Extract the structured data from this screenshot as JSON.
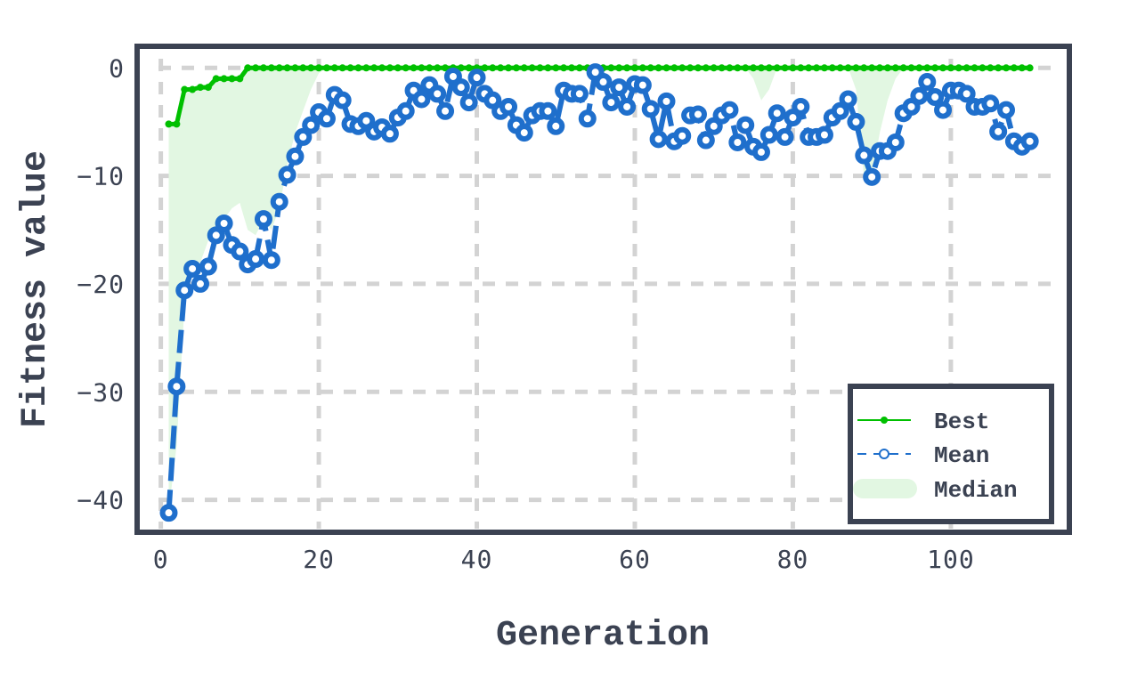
{
  "chart_data": {
    "type": "line",
    "xlabel": "Generation",
    "ylabel": "Fitness value",
    "xlim": [
      -3,
      115
    ],
    "ylim": [
      -43,
      2
    ],
    "xticks": [
      0,
      20,
      40,
      60,
      80,
      100
    ],
    "yticks": [
      0,
      -10,
      -20,
      -30,
      -40
    ],
    "xtick_labels": [
      "0",
      "20",
      "40",
      "60",
      "80",
      "100"
    ],
    "ytick_labels": [
      "0",
      "−10",
      "−20",
      "−30",
      "−40"
    ],
    "grid": true,
    "legend_position": "bottom-right",
    "x": [
      1,
      2,
      3,
      4,
      5,
      6,
      7,
      8,
      9,
      10,
      11,
      12,
      13,
      14,
      15,
      16,
      17,
      18,
      19,
      20,
      21,
      22,
      23,
      24,
      25,
      26,
      27,
      28,
      29,
      30,
      31,
      32,
      33,
      34,
      35,
      36,
      37,
      38,
      39,
      40,
      41,
      42,
      43,
      44,
      45,
      46,
      47,
      48,
      49,
      50,
      51,
      52,
      53,
      54,
      55,
      56,
      57,
      58,
      59,
      60,
      61,
      62,
      63,
      64,
      65,
      66,
      67,
      68,
      69,
      70,
      71,
      72,
      73,
      74,
      75,
      76,
      77,
      78,
      79,
      80,
      81,
      82,
      83,
      84,
      85,
      86,
      87,
      88,
      89,
      90,
      91,
      92,
      93,
      94,
      95,
      96,
      97,
      98,
      99,
      100,
      101,
      102,
      103,
      104,
      105,
      106,
      107,
      108,
      109,
      110
    ],
    "series": [
      {
        "name": "Best",
        "color": "#00c000",
        "style": "solid-line-dot-markers",
        "values": [
          -5.2,
          -5.2,
          -2,
          -2,
          -1.8,
          -1.8,
          -1,
          -1,
          -1,
          -1,
          0,
          0,
          0,
          0,
          0,
          0,
          0,
          0,
          0,
          0,
          0,
          0,
          0,
          0,
          0,
          0,
          0,
          0,
          0,
          0,
          0,
          0,
          0,
          0,
          0,
          0,
          0,
          0,
          0,
          0,
          0,
          0,
          0,
          0,
          0,
          0,
          0,
          0,
          0,
          0,
          0,
          0,
          0,
          0,
          0,
          0,
          0,
          0,
          0,
          0,
          0,
          0,
          0,
          0,
          0,
          0,
          0,
          0,
          0,
          0,
          0,
          0,
          0,
          0,
          0,
          0,
          0,
          0,
          0,
          0,
          0,
          0,
          0,
          0,
          0,
          0,
          0,
          0,
          0,
          0,
          0,
          0,
          0,
          0,
          0,
          0,
          0,
          0,
          0,
          0,
          0,
          0,
          0,
          0,
          0,
          0,
          0,
          0,
          0,
          0
        ]
      },
      {
        "name": "Mean",
        "color": "#1f6fcc",
        "style": "dashed-line-circle-markers",
        "values": [
          -41.2,
          -29.5,
          -20.6,
          -18.6,
          -20,
          -18.4,
          -15.5,
          -14.4,
          -16.4,
          -17,
          -18.2,
          -17.7,
          -14,
          -17.8,
          -12.4,
          -9.9,
          -8.2,
          -6.4,
          -5.3,
          -4.1,
          -4.7,
          -2.5,
          -3,
          -5.2,
          -5.4,
          -4.9,
          -5.9,
          -5.5,
          -6.1,
          -4.6,
          -4,
          -2.1,
          -2.9,
          -1.6,
          -2.4,
          -4,
          -0.8,
          -1.8,
          -3.2,
          -0.9,
          -2.4,
          -3,
          -4,
          -3.6,
          -5.3,
          -6,
          -4.4,
          -4,
          -4,
          -5.4,
          -2.1,
          -2.4,
          -2.4,
          -4.7,
          -0.4,
          -1.3,
          -3.2,
          -1.8,
          -3.6,
          -1.5,
          -1.6,
          -3.8,
          -6.6,
          -3.1,
          -6.8,
          -6.3,
          -4.4,
          -4.3,
          -6.7,
          -5.4,
          -4.4,
          -3.9,
          -6.9,
          -5.3,
          -7.3,
          -7.8,
          -6.2,
          -4.2,
          -6.4,
          -4.6,
          -3.6,
          -6.4,
          -6.4,
          -6.2,
          -4.6,
          -4,
          -2.9,
          -5,
          -8.1,
          -10.1,
          -7.7,
          -7.7,
          -6.9,
          -4.2,
          -3.6,
          -2.6,
          -1.3,
          -2.7,
          -3.9,
          -2.1,
          -2.1,
          -2.4,
          -3.6,
          -3.6,
          -3.3,
          -5.9,
          -3.9,
          -6.8,
          -7.3,
          -6.8
        ]
      },
      {
        "name": "Median",
        "color": "#e2f7e2",
        "style": "shaded-area",
        "lower": [
          -41,
          -35,
          -22,
          -18.5,
          -18,
          -16,
          -15,
          -14,
          -13,
          -12.5,
          -15,
          -15.5,
          -14,
          -15,
          -13,
          -9,
          -6,
          -4,
          -2,
          -0.5,
          0,
          0,
          0,
          0,
          0,
          0,
          0,
          0,
          0,
          0,
          0,
          0,
          0,
          0,
          0,
          0,
          0,
          0,
          0,
          0,
          0,
          0,
          0,
          0,
          0,
          0,
          0,
          0,
          0,
          0,
          0,
          0,
          0,
          0,
          0,
          0,
          0,
          0,
          0,
          0,
          0,
          0,
          0,
          0,
          0,
          0,
          0,
          0,
          0,
          0,
          0,
          0,
          0,
          0,
          -1,
          -3,
          -2,
          0,
          0,
          0,
          0,
          0,
          0,
          0,
          0,
          0,
          0,
          -2,
          -10,
          -10,
          -6,
          -3,
          -1,
          0,
          0,
          0,
          0,
          0,
          0,
          0,
          0,
          0,
          0,
          0,
          0,
          0,
          0,
          0,
          0,
          0
        ]
      }
    ]
  }
}
